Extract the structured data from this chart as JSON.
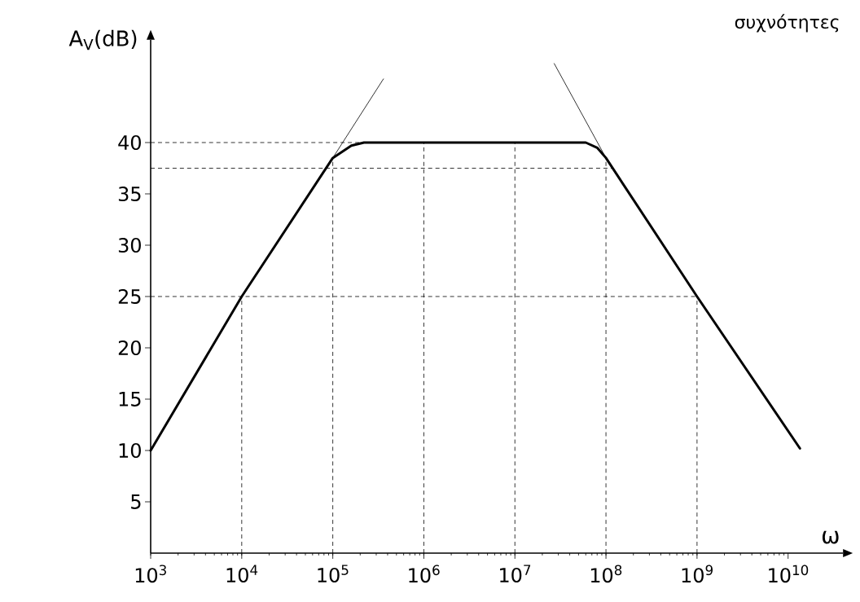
{
  "chart_data": {
    "type": "line",
    "title": "συχνότητες",
    "xlabel": "ω",
    "ylabel": "A$_{V}$(dB)",
    "log": "x",
    "grid": false,
    "marker": "none",
    "xlim": [
      1000,
      40000000000
    ],
    "ylim": [
      0,
      50
    ],
    "xticks": [
      {
        "value": 1000,
        "label": "10$^{3}$"
      },
      {
        "value": 10000,
        "label": "10$^{4}$"
      },
      {
        "value": 100000,
        "label": "10$^{5}$"
      },
      {
        "value": 1000000,
        "label": "10$^{6}$"
      },
      {
        "value": 10000000,
        "label": "10$^{7}$"
      },
      {
        "value": 100000000,
        "label": "10$^{8}$"
      },
      {
        "value": 1000000000,
        "label": "10$^{9}$"
      },
      {
        "value": 10000000000,
        "label": "10$^{10}$"
      }
    ],
    "yticks": [
      5,
      10,
      15,
      20,
      25,
      30,
      35,
      40
    ],
    "series": [
      {
        "color": "#000000",
        "x": [
          1000,
          10000,
          100000,
          160000,
          220000,
          60000000,
          80000000,
          100000000,
          1000000000,
          13500000000
        ],
        "values": [
          10,
          25,
          38.5,
          39.7,
          40,
          40,
          39.5,
          38.5,
          25,
          10.2
        ]
      },
      {
        "color": "#000000",
        "x": [
          100000,
          360000
        ],
        "values": [
          38.5,
          46.2
        ]
      },
      {
        "color": "#000000",
        "x": [
          27000000,
          100000000
        ],
        "values": [
          47.7,
          38.5
        ]
      }
    ],
    "ref_lines": [
      {
        "axis": "y",
        "value": 40,
        "line_style": "dashed"
      },
      {
        "axis": "y",
        "value": 37.5,
        "line_style": "dashed"
      },
      {
        "axis": "y",
        "value": 25,
        "line_style": "dashed"
      },
      {
        "axis": "x",
        "value": 10000,
        "line_style": "dashed"
      },
      {
        "axis": "x",
        "value": 100000,
        "line_style": "dashed"
      },
      {
        "axis": "x",
        "value": 1000000,
        "line_style": "dashed"
      },
      {
        "axis": "x",
        "value": 10000000,
        "line_style": "dashed"
      },
      {
        "axis": "x",
        "value": 100000000,
        "line_style": "dashed"
      },
      {
        "axis": "x",
        "value": 1000000000,
        "line_style": "dashed"
      }
    ]
  }
}
